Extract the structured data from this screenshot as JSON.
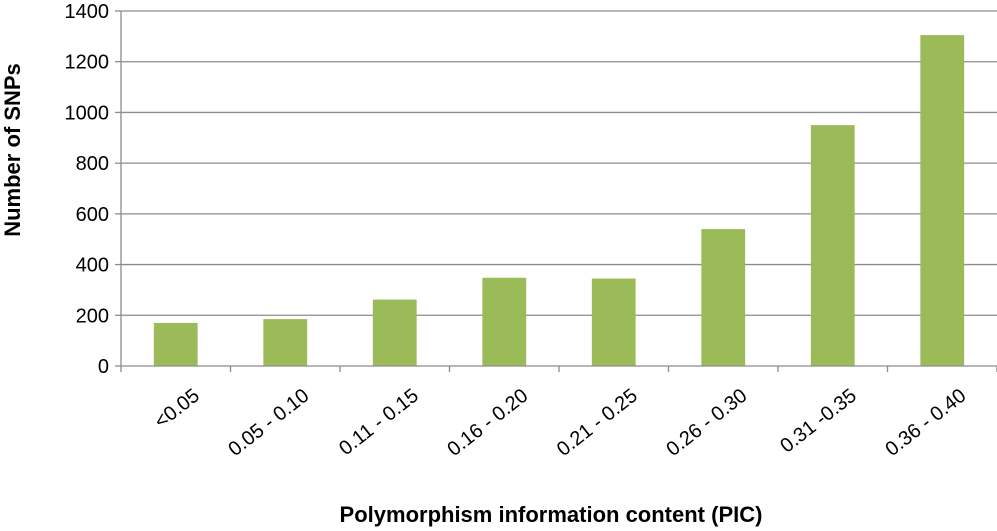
{
  "chart_data": {
    "type": "bar",
    "title": "",
    "xlabel": "Polymorphism information content (PIC)",
    "ylabel": "Number of SNPs",
    "categories": [
      "<0.05",
      "0.05 - 0.10",
      "0.11 - 0.15",
      "0.16 - 0.20",
      "0.21 - 0.25",
      "0.26 - 0.30",
      "0.31 -0.35",
      "0.36 - 0.40"
    ],
    "values": [
      170,
      185,
      262,
      348,
      345,
      540,
      950,
      1305
    ],
    "ylim": [
      0,
      1400
    ],
    "yticks": [
      0,
      200,
      400,
      600,
      800,
      1000,
      1200,
      1400
    ],
    "grid": true,
    "legend": "none",
    "bar_color": "#9BBB59",
    "grid_color": "#8C8C8C",
    "axis_color": "#8C8C8C"
  }
}
